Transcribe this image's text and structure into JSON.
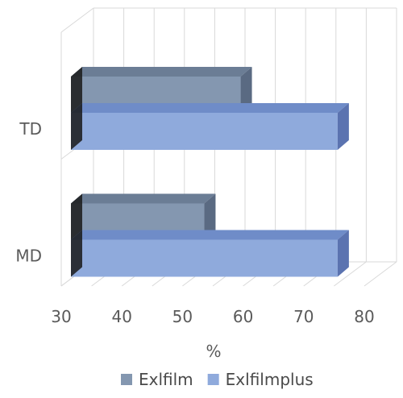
{
  "chart_data": {
    "type": "bar",
    "orientation": "horizontal",
    "three_d": true,
    "categories": [
      "TD",
      "MD"
    ],
    "series": [
      {
        "name": "Exlfilm",
        "values": [
          58,
          52
        ],
        "color": "#8497b0",
        "side_color": "#5a6a82",
        "top_color": "#6b7d95"
      },
      {
        "name": "Exlfilmplus",
        "values": [
          74,
          74
        ],
        "color": "#8faadc",
        "side_color": "#5b73b0",
        "top_color": "#6f8cc8"
      }
    ],
    "xlabel": "%",
    "ylabel": "",
    "xlim": [
      30,
      80
    ],
    "xticks": [
      30,
      40,
      50,
      60,
      70,
      80
    ],
    "grid": true,
    "legend_position": "bottom"
  }
}
